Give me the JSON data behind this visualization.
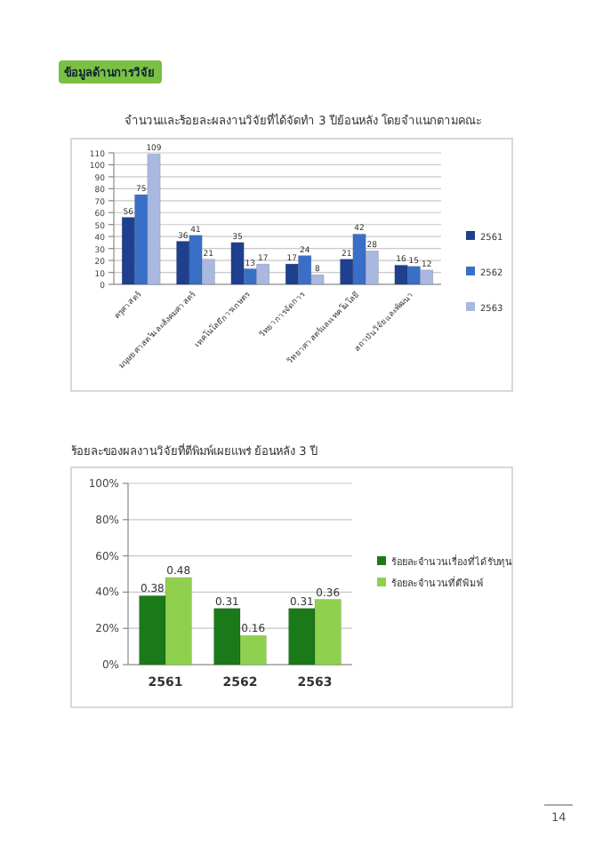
{
  "chart_data": [
    {
      "type": "bar",
      "title": "จำนวนและร้อยละผลงานวิจัยที่ได้จัดทำ 3 ปีย้อนหลัง โดยจำแนกตามคณะ",
      "annotations": [
        "ข้อมูลด้านการวิจัย"
      ],
      "categories": [
        "ครุศาสตร์",
        "มนุษยศาสตร์และสังคมศาสตร์",
        "เทคโนโลยีการเกษตร",
        "วิทยาการจัดการ",
        "วิทยาศาสตร์และเทคโนโลยี",
        "สถาบันวิจัยและพัฒนา"
      ],
      "series": [
        {
          "name": "2561",
          "color": "#1f3f8f",
          "values": [
            56,
            36,
            35,
            17,
            21,
            16
          ]
        },
        {
          "name": "2562",
          "color": "#3a6fc8",
          "values": [
            75,
            41,
            13,
            24,
            42,
            15
          ]
        },
        {
          "name": "2563",
          "color": "#a8b8e0",
          "values": [
            109,
            21,
            17,
            8,
            28,
            12
          ]
        }
      ],
      "ylim": [
        0,
        110
      ],
      "yticks": [
        0,
        10,
        20,
        30,
        40,
        50,
        60,
        70,
        80,
        90,
        100,
        110
      ],
      "grid": "y",
      "legend": "right",
      "data_labels": true
    },
    {
      "type": "bar",
      "title": "ร้อยละของผลงานวิจัยที่ตีพิมพ์เผยแพร่ ย้อนหลัง 3 ปี",
      "annotations": [
        "14"
      ],
      "categories": [
        "2561",
        "2562",
        "2563"
      ],
      "series": [
        {
          "name": "ร้อยละจำนวนเรื่องที่ได้รับทุน",
          "color": "#1a7a1a",
          "values": [
            0.38,
            0.31,
            0.31
          ]
        },
        {
          "name": "ร้อยละจำนวนที่ตีพิมพ์",
          "color": "#8fd14f",
          "values": [
            0.48,
            0.16,
            0.36
          ]
        }
      ],
      "ylim": [
        0,
        1
      ],
      "yticks": [
        {
          "value": 0,
          "label": "0%"
        },
        {
          "value": 0.2,
          "label": "20%"
        },
        {
          "value": 0.4,
          "label": "40%"
        },
        {
          "value": 0.6,
          "label": "60%"
        },
        {
          "value": 0.8,
          "label": "80%"
        },
        {
          "value": 1,
          "label": "100%"
        }
      ],
      "grid": "y",
      "legend": "right",
      "data_labels": true
    }
  ]
}
